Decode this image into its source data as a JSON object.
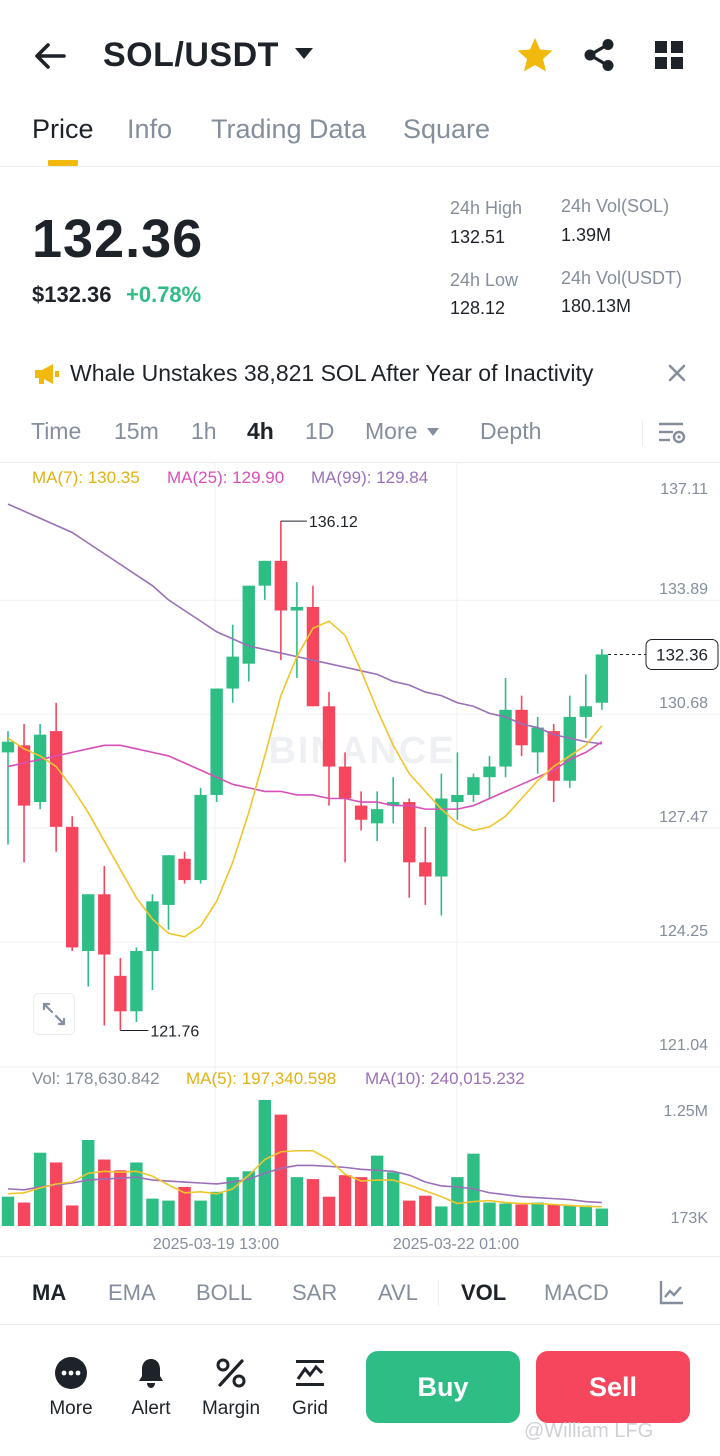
{
  "header": {
    "pair": "SOL/USDT",
    "icons": [
      "back-arrow-icon",
      "dropdown-caret-icon",
      "favorite-star-icon",
      "share-icon",
      "grid-menu-icon"
    ],
    "star_color": "#f0b90b"
  },
  "tabs": [
    {
      "label": "Price",
      "active": true
    },
    {
      "label": "Info",
      "active": false
    },
    {
      "label": "Trading Data",
      "active": false
    },
    {
      "label": "Square",
      "active": false
    }
  ],
  "price": {
    "last": "132.36",
    "usd": "$132.36",
    "change": "+0.78%",
    "change_color": "#2ebd85"
  },
  "stats": {
    "high_label": "24h High",
    "high_value": "132.51",
    "low_label": "24h Low",
    "low_value": "128.12",
    "vol_base_label": "24h Vol(SOL)",
    "vol_base_value": "1.39M",
    "vol_quote_label": "24h Vol(USDT)",
    "vol_quote_value": "180.13M"
  },
  "news": {
    "text": "Whale Unstakes 38,821 SOL After Year of Inactivity",
    "icon": "megaphone-icon"
  },
  "intervals": [
    {
      "label": "Time",
      "active": false
    },
    {
      "label": "15m",
      "active": false
    },
    {
      "label": "1h",
      "active": false
    },
    {
      "label": "4h",
      "active": true
    },
    {
      "label": "1D",
      "active": false
    },
    {
      "label": "More",
      "active": false
    },
    {
      "label": "Depth",
      "active": false
    }
  ],
  "chart_data": {
    "type": "candlestick",
    "legend": {
      "ma7": "MA(7): 130.35",
      "ma25": "MA(25): 129.90",
      "ma99": "MA(99): 129.84"
    },
    "price_axis_labels": [
      "137.11",
      "133.89",
      "130.68",
      "127.47",
      "124.25",
      "121.04"
    ],
    "price_axis_range": [
      121.04,
      137.11
    ],
    "current_price_tag": "132.36",
    "high_annotation": "136.12",
    "low_annotation": "121.76",
    "watermark": "BINANCE",
    "colors": {
      "up": "#2ebd85",
      "down": "#f6465d",
      "ma7": "#f0c52b",
      "ma25": "#d94fb8",
      "ma99": "#9b6fb8"
    },
    "candles": [
      {
        "o": 129.6,
        "h": 130.2,
        "l": 127.0,
        "c": 129.9
      },
      {
        "o": 129.8,
        "h": 130.4,
        "l": 126.5,
        "c": 128.1
      },
      {
        "o": 128.2,
        "h": 130.4,
        "l": 128.0,
        "c": 130.1
      },
      {
        "o": 130.2,
        "h": 131.0,
        "l": 126.8,
        "c": 127.5
      },
      {
        "o": 127.5,
        "h": 127.8,
        "l": 124.0,
        "c": 124.1
      },
      {
        "o": 124.0,
        "h": 125.6,
        "l": 123.0,
        "c": 125.6
      },
      {
        "o": 125.6,
        "h": 126.4,
        "l": 121.9,
        "c": 123.9
      },
      {
        "o": 123.3,
        "h": 123.8,
        "l": 121.76,
        "c": 122.3
      },
      {
        "o": 122.3,
        "h": 124.1,
        "l": 122.0,
        "c": 124.0
      },
      {
        "o": 124.0,
        "h": 125.6,
        "l": 122.9,
        "c": 125.4
      },
      {
        "o": 125.3,
        "h": 126.7,
        "l": 124.6,
        "c": 126.7
      },
      {
        "o": 126.6,
        "h": 126.8,
        "l": 125.9,
        "c": 126.0
      },
      {
        "o": 126.0,
        "h": 128.6,
        "l": 125.9,
        "c": 128.4
      },
      {
        "o": 128.4,
        "h": 131.4,
        "l": 128.2,
        "c": 131.4
      },
      {
        "o": 131.4,
        "h": 133.2,
        "l": 131.0,
        "c": 132.3
      },
      {
        "o": 132.1,
        "h": 134.3,
        "l": 131.6,
        "c": 134.3
      },
      {
        "o": 134.3,
        "h": 135.0,
        "l": 133.9,
        "c": 135.0
      },
      {
        "o": 135.0,
        "h": 136.12,
        "l": 132.2,
        "c": 133.6
      },
      {
        "o": 133.6,
        "h": 134.4,
        "l": 131.7,
        "c": 133.7
      },
      {
        "o": 133.7,
        "h": 134.3,
        "l": 130.9,
        "c": 130.9
      },
      {
        "o": 130.9,
        "h": 131.3,
        "l": 128.1,
        "c": 129.2
      },
      {
        "o": 129.2,
        "h": 129.6,
        "l": 126.5,
        "c": 128.3
      },
      {
        "o": 128.1,
        "h": 128.5,
        "l": 127.4,
        "c": 127.7
      },
      {
        "o": 127.6,
        "h": 128.5,
        "l": 127.1,
        "c": 128.0
      },
      {
        "o": 128.1,
        "h": 128.9,
        "l": 127.6,
        "c": 128.2
      },
      {
        "o": 128.2,
        "h": 128.3,
        "l": 125.5,
        "c": 126.5
      },
      {
        "o": 126.5,
        "h": 127.5,
        "l": 125.3,
        "c": 126.1
      },
      {
        "o": 126.1,
        "h": 129.0,
        "l": 125.0,
        "c": 128.3
      },
      {
        "o": 128.2,
        "h": 129.6,
        "l": 127.7,
        "c": 128.4
      },
      {
        "o": 128.4,
        "h": 129.0,
        "l": 128.2,
        "c": 128.9
      },
      {
        "o": 128.9,
        "h": 129.5,
        "l": 128.3,
        "c": 129.2
      },
      {
        "o": 129.2,
        "h": 131.7,
        "l": 128.9,
        "c": 130.8
      },
      {
        "o": 130.8,
        "h": 131.2,
        "l": 129.5,
        "c": 129.8
      },
      {
        "o": 129.6,
        "h": 130.6,
        "l": 129.0,
        "c": 130.3
      },
      {
        "o": 130.2,
        "h": 130.4,
        "l": 128.2,
        "c": 128.8
      },
      {
        "o": 128.8,
        "h": 131.2,
        "l": 128.6,
        "c": 130.6
      },
      {
        "o": 130.6,
        "h": 131.8,
        "l": 130.0,
        "c": 130.9
      },
      {
        "o": 131.0,
        "h": 132.51,
        "l": 130.8,
        "c": 132.36
      }
    ],
    "ma7_series": [
      130.0,
      129.7,
      129.5,
      129.2,
      128.6,
      127.9,
      127.1,
      126.3,
      125.5,
      124.9,
      124.5,
      124.4,
      124.7,
      125.4,
      126.5,
      127.9,
      129.5,
      131.2,
      132.3,
      133.1,
      133.3,
      132.9,
      131.9,
      130.8,
      129.8,
      129.0,
      128.5,
      128.0,
      127.6,
      127.4,
      127.5,
      127.8,
      128.3,
      128.8,
      129.2,
      129.5,
      129.8,
      130.35
    ],
    "ma25_series": [
      129.2,
      129.3,
      129.4,
      129.5,
      129.6,
      129.7,
      129.8,
      129.8,
      129.7,
      129.6,
      129.5,
      129.3,
      129.1,
      128.9,
      128.7,
      128.6,
      128.5,
      128.5,
      128.4,
      128.4,
      128.3,
      128.3,
      128.2,
      128.2,
      128.1,
      128.1,
      128.0,
      128.0,
      128.0,
      128.1,
      128.3,
      128.5,
      128.7,
      128.9,
      129.1,
      129.4,
      129.6,
      129.9
    ],
    "ma99_series": [
      136.6,
      136.4,
      136.2,
      136.0,
      135.8,
      135.5,
      135.2,
      134.9,
      134.6,
      134.3,
      133.9,
      133.6,
      133.3,
      133.0,
      132.8,
      132.6,
      132.5,
      132.4,
      132.3,
      132.2,
      132.1,
      132.0,
      131.9,
      131.8,
      131.6,
      131.5,
      131.3,
      131.2,
      131.0,
      130.9,
      130.7,
      130.6,
      130.4,
      130.3,
      130.1,
      130.0,
      129.9,
      129.84
    ],
    "volume": {
      "legend": {
        "vol": "Vol: 178,630.842",
        "ma5": "MA(5): 197,340.598",
        "ma10": "MA(10): 240,015.232"
      },
      "axis_labels": [
        "1.25M",
        "173K"
      ],
      "axis_range": [
        0,
        1320000
      ],
      "values": [
        300000,
        240000,
        750000,
        650000,
        210000,
        880000,
        680000,
        570000,
        650000,
        280000,
        260000,
        400000,
        260000,
        350000,
        500000,
        560000,
        1290000,
        1140000,
        500000,
        480000,
        300000,
        520000,
        500000,
        720000,
        550000,
        260000,
        310000,
        200000,
        500000,
        740000,
        240000,
        230000,
        220000,
        240000,
        220000,
        210000,
        210000,
        178630
      ],
      "ma5_series": [
        330000,
        340000,
        390000,
        430000,
        450000,
        540000,
        560000,
        550000,
        560000,
        510000,
        420000,
        340000,
        350000,
        330000,
        380000,
        520000,
        680000,
        760000,
        770000,
        770000,
        680000,
        530000,
        460000,
        470000,
        470000,
        420000,
        360000,
        300000,
        230000,
        250000,
        260000,
        240000,
        230000,
        230000,
        220000,
        210000,
        200000,
        197340
      ],
      "ma10_series": [
        380000,
        370000,
        400000,
        420000,
        440000,
        470000,
        480000,
        490000,
        500000,
        470000,
        460000,
        450000,
        440000,
        430000,
        450000,
        480000,
        540000,
        590000,
        620000,
        620000,
        610000,
        600000,
        580000,
        570000,
        560000,
        520000,
        450000,
        410000,
        400000,
        380000,
        340000,
        320000,
        300000,
        290000,
        280000,
        270000,
        250000,
        240015
      ]
    },
    "x_axis_labels": [
      "2025-03-19 13:00",
      "2025-03-22 01:00"
    ]
  },
  "indicators": [
    {
      "label": "MA",
      "active": true
    },
    {
      "label": "EMA",
      "active": false
    },
    {
      "label": "BOLL",
      "active": false
    },
    {
      "label": "SAR",
      "active": false
    },
    {
      "label": "AVL",
      "active": false
    },
    {
      "label": "VOL",
      "active": true
    },
    {
      "label": "MACD",
      "active": false
    }
  ],
  "bottom_bar": {
    "more": "More",
    "alert": "Alert",
    "margin": "Margin",
    "grid": "Grid",
    "buy": "Buy",
    "sell": "Sell"
  },
  "watermark_text": "@William LFG"
}
